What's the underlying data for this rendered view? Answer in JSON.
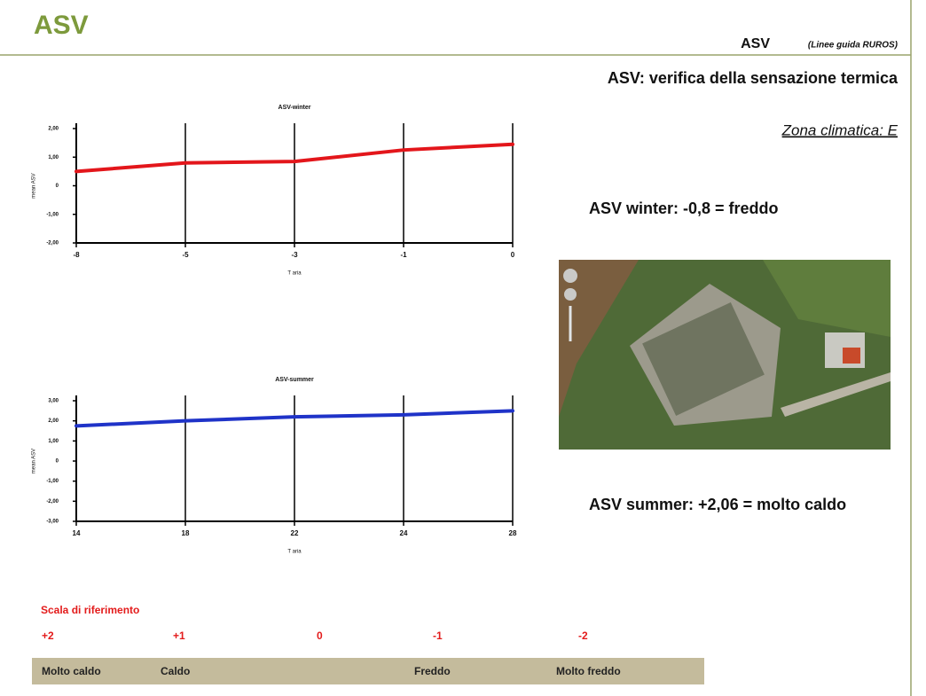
{
  "slide": {
    "title": "ASV",
    "corner_title": "ASV",
    "corner_note": "(Linee guida RUROS)",
    "heading": "ASV: verifica della sensazione termica",
    "zone": "Zona climatica: E",
    "winter_result": "ASV winter: -0,8 = freddo",
    "summer_result": "ASV summer: +2,06 = molto caldo",
    "scale_title": "Scala di riferimento",
    "scale_values": [
      "+2",
      "+1",
      "0",
      "-1",
      "-2"
    ],
    "scale_labels": [
      "Molto caldo",
      "Caldo",
      "Freddo",
      "Molto freddo"
    ]
  },
  "chart_data": [
    {
      "type": "line",
      "title": "ASV-winter",
      "x_label": "T aria",
      "y_label": "mean ASV",
      "categories": [
        "-8",
        "-5",
        "-3",
        "-1",
        "0"
      ],
      "series": [
        {
          "name": "ASV-winter",
          "color": "#e3161b",
          "values": [
            0.5,
            0.8,
            0.85,
            1.25,
            1.45
          ]
        }
      ],
      "ylim": [
        -2,
        2
      ],
      "yticks": [
        {
          "value": 2,
          "label": "2,00"
        },
        {
          "value": 1,
          "label": "1,00"
        },
        0,
        {
          "value": -1,
          "label": "-1,00"
        },
        {
          "value": -2,
          "label": "-2,00"
        }
      ],
      "x_grid": true
    },
    {
      "type": "line",
      "title": "ASV-summer",
      "x_label": "T aria",
      "y_label": "mean ASV",
      "categories": [
        "14",
        "18",
        "22",
        "24",
        "28"
      ],
      "series": [
        {
          "name": "ASV-summer",
          "color": "#1f33c8",
          "values": [
            1.75,
            2.0,
            2.2,
            2.3,
            2.5
          ]
        }
      ],
      "ylim": [
        -3,
        3
      ],
      "yticks": [
        {
          "value": 3,
          "label": "3,00"
        },
        {
          "value": 2,
          "label": "2,00"
        },
        {
          "value": 1,
          "label": "1,00"
        },
        0,
        {
          "value": -1,
          "label": "-1,00"
        },
        {
          "value": -2,
          "label": "-2,00"
        },
        {
          "value": -3,
          "label": "-3,00"
        }
      ],
      "x_grid": true
    }
  ]
}
